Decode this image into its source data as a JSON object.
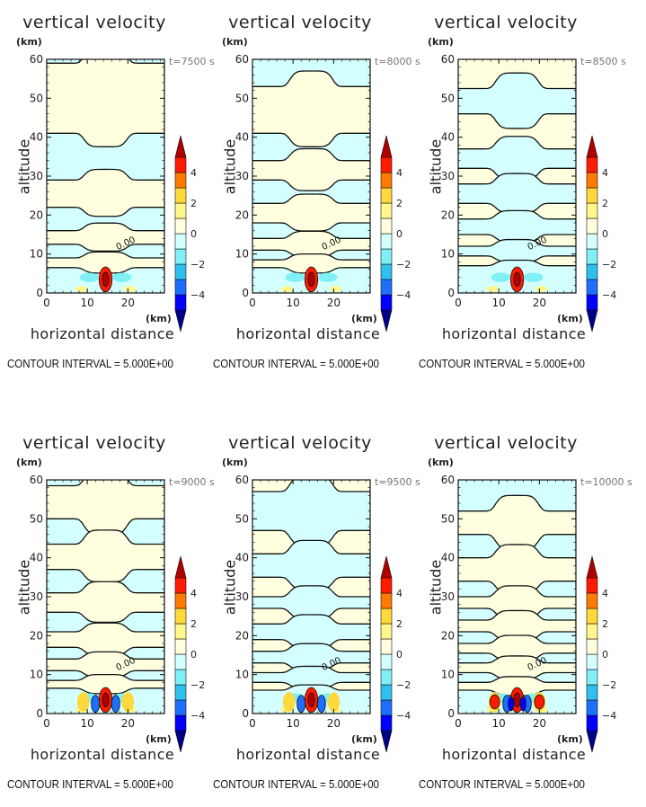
{
  "figure": {
    "contour_interval_text": "CONTOUR INTERVAL = 5.000E+00",
    "colorbar": {
      "levels": [
        -5,
        -4,
        -3,
        -2,
        -1,
        0,
        1,
        2,
        3,
        4,
        5
      ],
      "tick_labels": [
        "4",
        "2",
        "0",
        "−2",
        "−4"
      ],
      "tick_values": [
        4,
        2,
        0,
        -2,
        -4
      ],
      "colors": [
        "#00008b",
        "#0000ff",
        "#1e6fff",
        "#2fc0f0",
        "#7ff0f5",
        "#d4ffff",
        "#ffffe0",
        "#fff68c",
        "#ffd83c",
        "#ff7a00",
        "#ff1a00",
        "#b00000"
      ],
      "extend": "both"
    }
  },
  "chart_data": [
    {
      "type": "heatmap",
      "title": "vertical velocity",
      "time_label": "t=7500 s",
      "xlabel": "horizontal distance",
      "ylabel": "altitude",
      "x_unit": "(km)",
      "y_unit": "(km)",
      "xlim": [
        0,
        29
      ],
      "ylim": [
        0,
        60
      ],
      "xticks": [
        0,
        10,
        20
      ],
      "yticks": [
        0,
        10,
        20,
        30,
        40,
        50,
        60
      ],
      "contour_label": "0.00",
      "wave_bands_km": [
        59,
        41,
        29,
        22,
        16,
        12.5,
        9,
        6.5
      ],
      "center_max": 5,
      "grid": false
    },
    {
      "type": "heatmap",
      "title": "vertical velocity",
      "time_label": "t=8000 s",
      "xlabel": "horizontal distance",
      "ylabel": "altitude",
      "x_unit": "(km)",
      "y_unit": "(km)",
      "xlim": [
        0,
        29
      ],
      "ylim": [
        0,
        60
      ],
      "xticks": [
        0,
        10,
        20
      ],
      "yticks": [
        0,
        10,
        20,
        30,
        40,
        50,
        60
      ],
      "contour_label": "0.00",
      "wave_bands_km": [
        53,
        41,
        34,
        29,
        23,
        18,
        14,
        11,
        8.5,
        6.5
      ],
      "center_max": 5,
      "grid": false
    },
    {
      "type": "heatmap",
      "title": "vertical velocity",
      "time_label": "t=8500 s",
      "xlabel": "horizontal distance",
      "ylabel": "altitude",
      "x_unit": "(km)",
      "y_unit": "(km)",
      "xlim": [
        0,
        29
      ],
      "ylim": [
        0,
        60
      ],
      "xticks": [
        0,
        10,
        20
      ],
      "yticks": [
        0,
        10,
        20,
        30,
        40,
        50,
        60
      ],
      "contour_label": "0.00",
      "wave_bands_km": [
        52.5,
        46,
        37,
        32,
        28,
        23,
        19,
        15,
        12,
        9.5,
        7
      ],
      "center_max": 5,
      "grid": false
    },
    {
      "type": "heatmap",
      "title": "vertical velocity",
      "time_label": "t=9000 s",
      "xlabel": "horizontal distance",
      "ylabel": "altitude",
      "x_unit": "(km)",
      "y_unit": "(km)",
      "xlim": [
        0,
        29
      ],
      "ylim": [
        0,
        60
      ],
      "xticks": [
        0,
        10,
        20
      ],
      "yticks": [
        0,
        10,
        20,
        30,
        40,
        50,
        60
      ],
      "contour_label": "0.00",
      "wave_bands_km": [
        58.5,
        50,
        43.5,
        37,
        31,
        26,
        21,
        17,
        14,
        11,
        8.5,
        6.5
      ],
      "center_max": 5,
      "grid": false
    },
    {
      "type": "heatmap",
      "title": "vertical velocity",
      "time_label": "t=9500 s",
      "xlabel": "horizontal distance",
      "ylabel": "altitude",
      "x_unit": "(km)",
      "y_unit": "(km)",
      "xlim": [
        0,
        29
      ],
      "ylim": [
        0,
        60
      ],
      "xticks": [
        0,
        10,
        20
      ],
      "yticks": [
        0,
        10,
        20,
        30,
        40,
        50,
        60
      ],
      "contour_label": "0.00",
      "wave_bands_km": [
        57,
        47,
        41,
        35,
        30,
        27,
        23,
        19,
        16,
        13,
        10.5,
        8,
        6
      ],
      "center_max": 5,
      "grid": false
    },
    {
      "type": "heatmap",
      "title": "vertical velocity",
      "time_label": "t=10000 s",
      "xlabel": "horizontal distance",
      "ylabel": "altitude",
      "x_unit": "(km)",
      "y_unit": "(km)",
      "xlim": [
        0,
        29
      ],
      "ylim": [
        0,
        60
      ],
      "xticks": [
        0,
        10,
        20
      ],
      "yticks": [
        0,
        10,
        20,
        30,
        40,
        50,
        60
      ],
      "contour_label": "0.00",
      "wave_bands_km": [
        52,
        46,
        40,
        34,
        30,
        27,
        24,
        21,
        18,
        15.5,
        13,
        10.5,
        8,
        6
      ],
      "center_max": 5,
      "grid": false
    }
  ]
}
